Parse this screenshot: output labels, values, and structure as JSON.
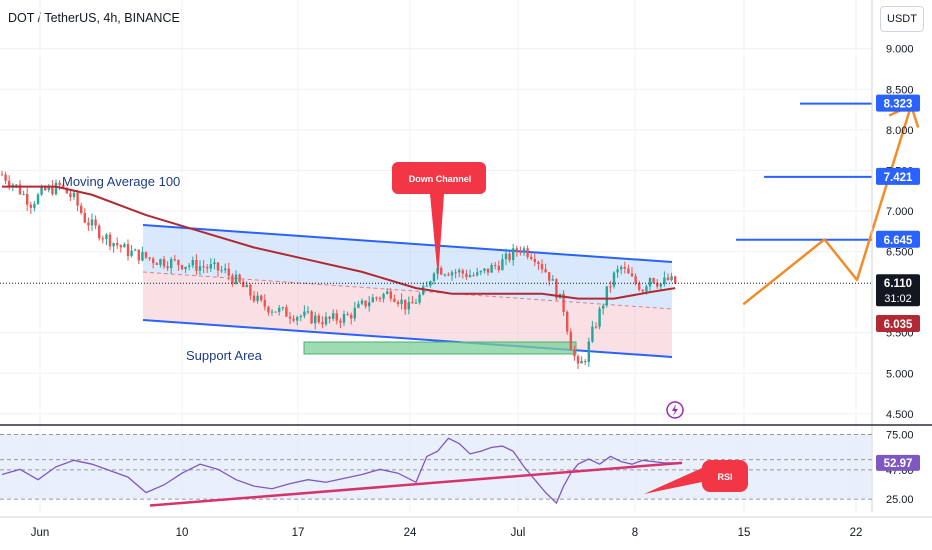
{
  "title": "DOT / TetherUS, 4h, BINANCE",
  "currency_badge": "USDT",
  "annotations": {
    "moving_average": "Moving Average 100",
    "down_channel": "Down Channel",
    "support_area": "Support Area",
    "rsi": "RSI"
  },
  "colors": {
    "ma": "#b22833",
    "channel": "#2962ff",
    "channel_fill": "#bbd6f7",
    "support_fill": "#7ccf98",
    "forecast": "#f28c28",
    "callout": "#f23645",
    "rsi_line": "#7e57c2",
    "rsi_trend": "#d6336c",
    "candle_up": "#26a69a",
    "candle_down": "#ef5350"
  },
  "chart_data": [
    {
      "type": "candlestick",
      "title": "DOT / TetherUS, 4h, BINANCE",
      "x_ticks": [
        "Jun",
        "10",
        "17",
        "24",
        "Jul",
        "8",
        "15",
        "22"
      ],
      "y_ticks": [
        "9.000",
        "8.500",
        "8.000",
        "7.500",
        "7.000",
        "6.500",
        "5.500",
        "5.000",
        "4.500"
      ],
      "ylim": [
        4.4,
        9.6
      ],
      "last_price": "6.110",
      "countdown": "31:02",
      "ma_value": "6.035",
      "price_levels": [
        "8.323",
        "7.421",
        "6.645"
      ],
      "price_path": [
        [
          0,
          7.45
        ],
        [
          4,
          7.3
        ],
        [
          8,
          7.1
        ],
        [
          12,
          7.25
        ],
        [
          16,
          7.3
        ],
        [
          20,
          7.15
        ],
        [
          23,
          6.9
        ],
        [
          28,
          6.7
        ],
        [
          35,
          6.5
        ],
        [
          42,
          6.4
        ],
        [
          50,
          6.35
        ],
        [
          58,
          6.3
        ],
        [
          62,
          6.25
        ],
        [
          66,
          6.1
        ],
        [
          72,
          5.85
        ],
        [
          78,
          5.75
        ],
        [
          84,
          5.7
        ],
        [
          90,
          5.65
        ],
        [
          96,
          5.7
        ],
        [
          102,
          5.9
        ],
        [
          108,
          6.0
        ],
        [
          113,
          5.8
        ],
        [
          118,
          6.05
        ],
        [
          120,
          6.3
        ],
        [
          126,
          6.25
        ],
        [
          132,
          6.2
        ],
        [
          136,
          6.3
        ],
        [
          140,
          6.4
        ],
        [
          144,
          6.55
        ],
        [
          148,
          6.45
        ],
        [
          152,
          6.2
        ],
        [
          156,
          5.8
        ],
        [
          158,
          5.35
        ],
        [
          160,
          5.05
        ],
        [
          162,
          5.2
        ],
        [
          164,
          5.5
        ],
        [
          168,
          6.0
        ],
        [
          170,
          6.2
        ],
        [
          172,
          6.3
        ],
        [
          175,
          6.15
        ],
        [
          178,
          6.05
        ],
        [
          180,
          6.2
        ],
        [
          183,
          6.1
        ],
        [
          185,
          6.15
        ],
        [
          187,
          6.11
        ]
      ],
      "ma100": [
        [
          0,
          7.3
        ],
        [
          15,
          7.3
        ],
        [
          25,
          7.2
        ],
        [
          40,
          6.95
        ],
        [
          55,
          6.75
        ],
        [
          70,
          6.55
        ],
        [
          85,
          6.4
        ],
        [
          100,
          6.25
        ],
        [
          115,
          6.05
        ],
        [
          125,
          5.98
        ],
        [
          140,
          5.98
        ],
        [
          150,
          5.98
        ],
        [
          160,
          5.92
        ],
        [
          170,
          5.92
        ],
        [
          180,
          6.0
        ],
        [
          187,
          6.05
        ]
      ],
      "forecast": [
        [
          6.0,
          5.85
        ],
        [
          6.75,
          6.65
        ],
        [
          7.05,
          6.15
        ],
        [
          7.55,
          8.3
        ]
      ],
      "rsi": {
        "label": "RSI",
        "ticks": [
          "75.00",
          "55.51",
          "47.60",
          "25.00"
        ],
        "current": "52.97",
        "ylim": [
          15,
          80
        ],
        "values": [
          [
            0,
            44
          ],
          [
            5,
            48
          ],
          [
            10,
            40
          ],
          [
            15,
            50
          ],
          [
            20,
            55
          ],
          [
            25,
            52
          ],
          [
            30,
            47
          ],
          [
            35,
            42
          ],
          [
            40,
            30
          ],
          [
            45,
            36
          ],
          [
            50,
            45
          ],
          [
            55,
            52
          ],
          [
            60,
            48
          ],
          [
            65,
            40
          ],
          [
            70,
            35
          ],
          [
            75,
            33
          ],
          [
            80,
            37
          ],
          [
            85,
            40
          ],
          [
            90,
            38
          ],
          [
            95,
            41
          ],
          [
            100,
            44
          ],
          [
            105,
            48
          ],
          [
            110,
            45
          ],
          [
            115,
            38
          ],
          [
            118,
            58
          ],
          [
            121,
            62
          ],
          [
            124,
            72
          ],
          [
            127,
            68
          ],
          [
            130,
            60
          ],
          [
            133,
            62
          ],
          [
            136,
            65
          ],
          [
            139,
            66
          ],
          [
            142,
            62
          ],
          [
            145,
            50
          ],
          [
            148,
            40
          ],
          [
            151,
            30
          ],
          [
            154,
            22
          ],
          [
            156,
            35
          ],
          [
            158,
            45
          ],
          [
            160,
            52
          ],
          [
            163,
            56
          ],
          [
            166,
            52
          ],
          [
            169,
            58
          ],
          [
            172,
            54
          ],
          [
            175,
            52
          ],
          [
            178,
            55
          ],
          [
            181,
            54
          ],
          [
            184,
            53
          ],
          [
            187,
            52.97
          ]
        ]
      }
    }
  ]
}
